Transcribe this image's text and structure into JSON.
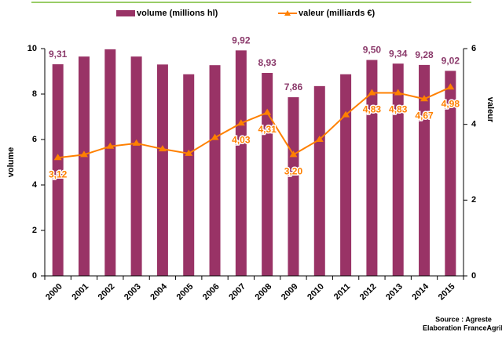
{
  "chart_data": {
    "type": "bar_line",
    "categories": [
      "2000",
      "2001",
      "2002",
      "2003",
      "2004",
      "2005",
      "2006",
      "2007",
      "2008",
      "2009",
      "2010",
      "2011",
      "2012",
      "2013",
      "2014",
      "2015"
    ],
    "ylabel": "volume",
    "y2label": "valeur",
    "ylim": [
      0,
      10
    ],
    "yticks": [
      0,
      2,
      4,
      6,
      8,
      10
    ],
    "y2lim": [
      0,
      6
    ],
    "y2ticks": [
      0,
      2,
      4,
      6
    ],
    "series": [
      {
        "name": "volume (millions hl)",
        "kind": "bar",
        "color": "#993366",
        "values": [
          9.31,
          9.65,
          9.97,
          9.65,
          9.3,
          8.87,
          9.27,
          9.92,
          8.93,
          7.86,
          8.35,
          8.87,
          9.5,
          9.34,
          9.28,
          9.02
        ],
        "value_labels": [
          "9,31",
          null,
          null,
          null,
          null,
          null,
          null,
          "9,92",
          "8,93",
          "7,86",
          null,
          null,
          "9,50",
          "9,34",
          "9,28",
          "9,02"
        ]
      },
      {
        "name": "valeur (milliards €)",
        "kind": "line",
        "axis": "y2",
        "color": "#ff8000",
        "values": [
          3.12,
          3.2,
          3.42,
          3.5,
          3.35,
          3.23,
          3.65,
          4.03,
          4.31,
          3.2,
          3.6,
          4.25,
          4.83,
          4.83,
          4.67,
          4.98
        ],
        "value_labels": [
          "3,12",
          null,
          null,
          null,
          null,
          null,
          null,
          "4,03",
          "4,31",
          "3,20",
          null,
          null,
          "4,83",
          "4,83",
          "4,67",
          "4,98"
        ]
      }
    ],
    "source": [
      "Source : Agreste",
      "Elaboration FranceAgriMer"
    ]
  }
}
